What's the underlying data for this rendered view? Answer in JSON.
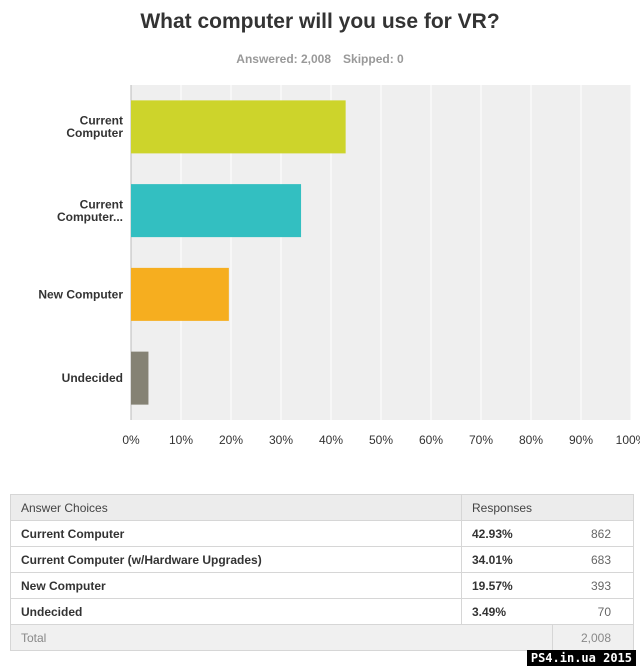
{
  "title": "What computer will you use for VR?",
  "answered_label": "Answered: 2,008",
  "skipped_label": "Skipped: 0",
  "chart_data": {
    "type": "bar",
    "orientation": "horizontal",
    "categories": [
      [
        "Current",
        "Computer"
      ],
      [
        "Current",
        "Computer..."
      ],
      [
        "New Computer"
      ],
      [
        "Undecided"
      ]
    ],
    "values": [
      42.93,
      34.01,
      19.57,
      3.49
    ],
    "colors": [
      "#cdd42b",
      "#33bfc1",
      "#f6ae1f",
      "#858274"
    ],
    "xlim": [
      0,
      100
    ],
    "xticks": [
      "0%",
      "10%",
      "20%",
      "30%",
      "40%",
      "50%",
      "60%",
      "70%",
      "80%",
      "90%",
      "100%"
    ],
    "grid": true,
    "plot_background": "#efefef"
  },
  "table": {
    "headers": [
      "Answer Choices",
      "Responses"
    ],
    "rows": [
      {
        "choice": "Current Computer",
        "pct": "42.93%",
        "count": "862"
      },
      {
        "choice": "Current Computer (w/Hardware Upgrades)",
        "pct": "34.01%",
        "count": "683"
      },
      {
        "choice": "New Computer",
        "pct": "19.57%",
        "count": "393"
      },
      {
        "choice": "Undecided",
        "pct": "3.49%",
        "count": "70"
      }
    ],
    "total_label": "Total",
    "total_value": "2,008"
  },
  "watermark": "PS4.in.ua  2015"
}
